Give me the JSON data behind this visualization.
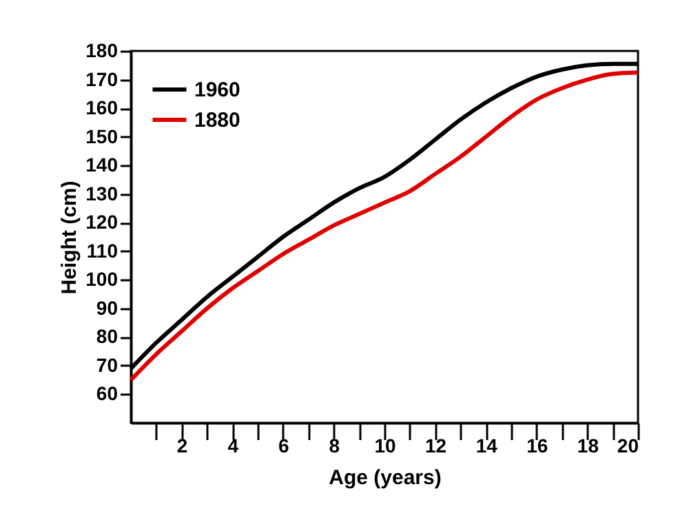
{
  "chart_data": {
    "type": "line",
    "xlabel": "Age (years)",
    "ylabel": "Height (cm)",
    "x": [
      0,
      1,
      2,
      3,
      4,
      5,
      6,
      7,
      8,
      9,
      10,
      11,
      12,
      13,
      14,
      15,
      16,
      17,
      18,
      19,
      20
    ],
    "series": [
      {
        "name": "1960",
        "color": "#000000",
        "values": [
          69,
          78,
          86,
          94,
          101,
          108,
          115,
          121,
          127,
          132,
          136,
          142,
          149,
          156,
          162,
          167,
          171,
          173.5,
          175,
          175.5,
          175.5
        ]
      },
      {
        "name": "1880",
        "color": "#e00000",
        "values": [
          65,
          74,
          82,
          90,
          97,
          103,
          109,
          114,
          119,
          123,
          127,
          131,
          137,
          143,
          150,
          157,
          163,
          167,
          170,
          172,
          172.5
        ]
      }
    ],
    "xlim": [
      0,
      20
    ],
    "ylim": [
      50,
      180
    ],
    "xticks": [
      {
        "value": 1,
        "label": null
      },
      2,
      {
        "value": 3,
        "label": null
      },
      4,
      {
        "value": 5,
        "label": null
      },
      6,
      {
        "value": 7,
        "label": null
      },
      8,
      {
        "value": 9,
        "label": null
      },
      10,
      {
        "value": 11,
        "label": null
      },
      12,
      {
        "value": 13,
        "label": null
      },
      14,
      {
        "value": 15,
        "label": null
      },
      16,
      {
        "value": 17,
        "label": null
      },
      18,
      {
        "value": 19,
        "label": null
      },
      20
    ],
    "yticks": [
      60,
      70,
      80,
      90,
      100,
      110,
      120,
      130,
      140,
      150,
      160,
      170,
      180
    ],
    "grid": false,
    "legend": "top left",
    "marker": "none",
    "line_style": "solid"
  }
}
